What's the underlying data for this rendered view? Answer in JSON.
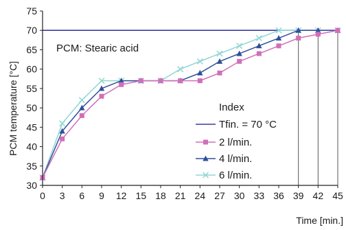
{
  "chart_data": {
    "type": "line",
    "xlabel": "Time [min.]",
    "ylabel": "PCM temperature [°C]",
    "annotation": "PCM: Stearic acid",
    "legend_title": "Index",
    "xlim": [
      0,
      45
    ],
    "ylim": [
      30,
      75
    ],
    "xticks": [
      0,
      3,
      6,
      9,
      12,
      15,
      18,
      21,
      24,
      27,
      30,
      33,
      36,
      39,
      42,
      45
    ],
    "yticks": [
      30,
      35,
      40,
      45,
      50,
      55,
      60,
      65,
      70,
      75
    ],
    "x": [
      0,
      3,
      6,
      9,
      12,
      15,
      18,
      21,
      24,
      27,
      30,
      33,
      36,
      39,
      42,
      45
    ],
    "reference_line": {
      "name": "Tfin. = 70 °C",
      "value": 70,
      "color": "#3a3aa0"
    },
    "series": [
      {
        "name": "2 l/min.",
        "marker": "square",
        "color": "#d06fb8",
        "values": [
          32,
          42,
          48,
          53,
          56,
          57,
          57,
          57,
          57,
          59,
          62,
          64,
          66,
          68,
          69,
          70
        ]
      },
      {
        "name": "4 l/min.",
        "marker": "triangle",
        "color": "#2f4f9a",
        "values": [
          32,
          44,
          50,
          55,
          57,
          57,
          57,
          57,
          59,
          62,
          64,
          66,
          68,
          70,
          70,
          70
        ]
      },
      {
        "name": "6 l/min.",
        "marker": "cross",
        "color": "#8fd6d2",
        "values": [
          32,
          46,
          52,
          57,
          57,
          57,
          57,
          60,
          62,
          64,
          66,
          68,
          70,
          70,
          70,
          70
        ]
      }
    ],
    "drop_lines_x": [
      39,
      42,
      45
    ],
    "grid": false,
    "legend_position": "right"
  }
}
